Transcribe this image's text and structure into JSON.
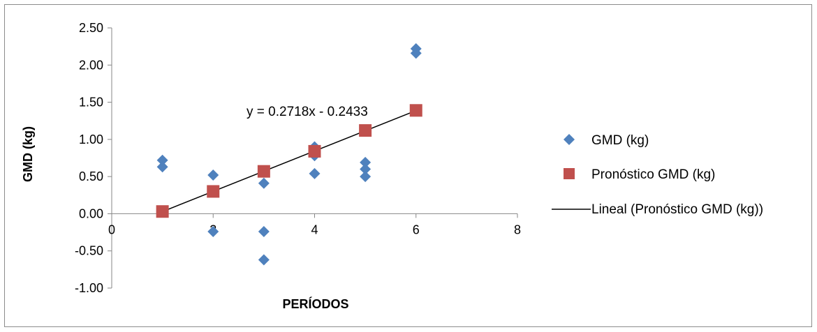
{
  "chart_data": {
    "type": "scatter",
    "title": "",
    "xlabel": "PERÍODOS",
    "ylabel": "GMD (kg)",
    "xlim": [
      0,
      8
    ],
    "ylim": [
      -1.0,
      2.5
    ],
    "x_ticks": [
      "0",
      "2",
      "4",
      "6",
      "8"
    ],
    "y_ticks": [
      "2.50",
      "2.00",
      "1.50",
      "1.00",
      "0.50",
      "0.00",
      "-0.50",
      "-1.00"
    ],
    "grid": false,
    "legend_position": "right",
    "series": [
      {
        "name": "GMD (kg)",
        "marker": "diamond",
        "color": "#4f81bd",
        "points": [
          [
            1,
            0.72
          ],
          [
            1,
            0.63
          ],
          [
            2,
            0.52
          ],
          [
            2,
            -0.24
          ],
          [
            2,
            0.3
          ],
          [
            3,
            0.41
          ],
          [
            3,
            -0.24
          ],
          [
            3,
            -0.62
          ],
          [
            3,
            0.57
          ],
          [
            4,
            0.9
          ],
          [
            4,
            0.78
          ],
          [
            4,
            0.54
          ],
          [
            4,
            0.84
          ],
          [
            5,
            0.69
          ],
          [
            5,
            0.6
          ],
          [
            5,
            0.5
          ],
          [
            5,
            1.12
          ],
          [
            6,
            2.22
          ],
          [
            6,
            2.16
          ],
          [
            6,
            1.39
          ]
        ]
      },
      {
        "name": "Pronóstico GMD (kg)",
        "marker": "square",
        "color": "#c0504d",
        "points": [
          [
            1,
            0.03
          ],
          [
            2,
            0.3
          ],
          [
            3,
            0.57
          ],
          [
            4,
            0.84
          ],
          [
            5,
            1.12
          ],
          [
            6,
            1.39
          ]
        ]
      },
      {
        "name": "Lineal (Pronóstico GMD (kg))",
        "type": "line",
        "color": "#000000",
        "slope": 0.2718,
        "intercept": -0.2433,
        "x_range": [
          1,
          6
        ]
      }
    ],
    "annotation": "y = 0.2718x - 0.2433"
  }
}
